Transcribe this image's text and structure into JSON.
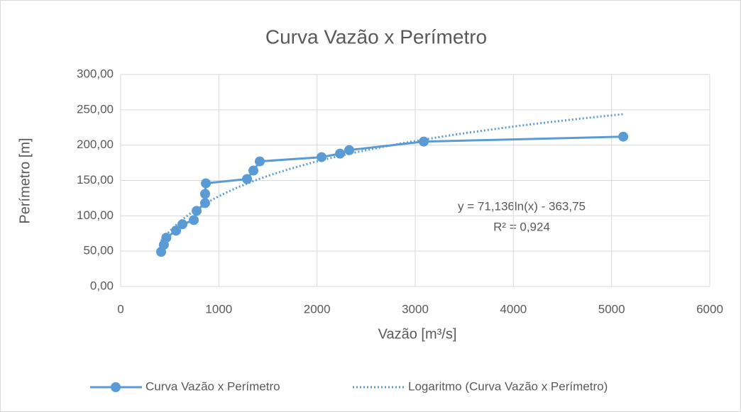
{
  "chart_data": {
    "type": "scatter",
    "title": "Curva Vazão x Perímetro",
    "xlabel": "Vazão [m³/s]",
    "ylabel": "Perímetro [m]",
    "series": [
      {
        "name": "Curva Vazão x Perímetro",
        "color": "#5b9bd5",
        "x": [
          412,
          440,
          465,
          564,
          629,
          745,
          774,
          860,
          860,
          868,
          1287,
          1352,
          1417,
          2046,
          2234,
          2328,
          3087,
          5119
        ],
        "values": [
          49,
          59,
          69,
          79,
          88,
          94,
          107,
          118,
          131,
          146,
          152,
          164,
          177,
          183,
          188,
          193,
          205,
          212
        ]
      }
    ],
    "trendline": {
      "name": "Logaritmo (Curva Vazão x Perímetro)",
      "color": "#5b9bd5",
      "coefficients": [
        71.136,
        -363.75
      ],
      "equation": "y = 71,136ln(x) - 363,75",
      "r2": "R² = 0,924"
    },
    "xlim": [
      0,
      6000
    ],
    "xticks": [
      0,
      1000,
      2000,
      3000,
      4000,
      5000,
      6000
    ],
    "ylim": [
      0,
      300
    ],
    "yticks": [
      {
        "value": 0,
        "label": "0,00"
      },
      {
        "value": 50,
        "label": "50,00"
      },
      {
        "value": 100,
        "label": "100,00"
      },
      {
        "value": 150,
        "label": "150,00"
      },
      {
        "value": 200,
        "label": "200,00"
      },
      {
        "value": 250,
        "label": "250,00"
      },
      {
        "value": 300,
        "label": "300,00"
      }
    ],
    "grid": true,
    "legend": "bottom"
  }
}
